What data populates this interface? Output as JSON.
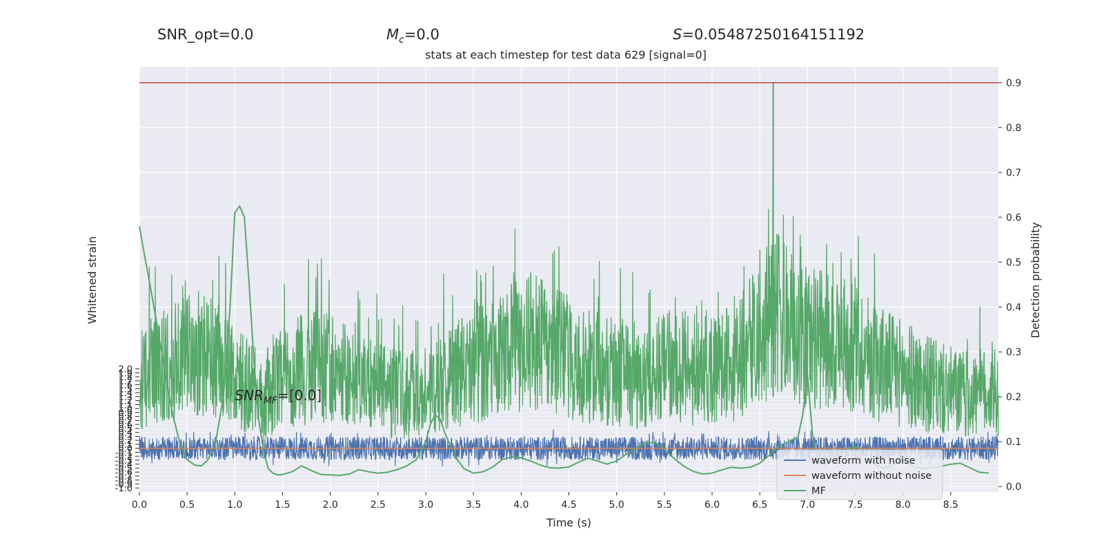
{
  "header": {
    "snr_opt": "SNR_opt=0.0",
    "mc_symbol": "M",
    "mc_sub": "c",
    "mc_value": "=0.0",
    "s_symbol": "S",
    "s_value": "=0.05487250164151192"
  },
  "chart_data": {
    "type": "line",
    "title": "stats at each timestep for test data 629 [signal=0]",
    "xlabel": "Time (s)",
    "ylabel_left": "Whitened strain",
    "ylabel_right": "Detection probability",
    "xlim": [
      0.0,
      9.0
    ],
    "ylim_left": [
      -1.1,
      9.6
    ],
    "ylim_right": [
      -0.012,
      0.935
    ],
    "x_ticks": [
      "0.0",
      "0.5",
      "1.0",
      "1.5",
      "2.0",
      "2.5",
      "3.0",
      "3.5",
      "4.0",
      "4.5",
      "5.0",
      "5.5",
      "6.0",
      "6.5",
      "7.0",
      "7.5",
      "8.0",
      "8.5"
    ],
    "left_ticks": [
      "2.0",
      "1.9",
      "1.8",
      "1.7",
      "1.6",
      "1.5",
      "1.4",
      "1.3",
      "1.2",
      "1.1",
      "1.0",
      "0.9",
      "0.8",
      "0.7",
      "0.6",
      "0.5",
      "0.4",
      "0.3",
      "0.2",
      "0.1",
      "0.0",
      "-0.1",
      "-0.2",
      "-0.3",
      "-0.4",
      "-0.5",
      "-0.6",
      "-0.7",
      "-0.8",
      "-0.9",
      "-1.0"
    ],
    "right_ticks": [
      "0.0",
      "0.1",
      "0.2",
      "0.3",
      "0.4",
      "0.5",
      "0.6",
      "0.7",
      "0.8",
      "0.9"
    ],
    "threshold": 0.9,
    "annotation": {
      "symbol": "SNR",
      "sub": "MF",
      "text": "=[0.0]",
      "x": 1.0,
      "y_prob": 0.2
    },
    "grid": true,
    "legend_position": "lower-right",
    "series": [
      {
        "name": "waveform with noise",
        "axis": "left",
        "kind": "noise",
        "amplitude": 0.35
      },
      {
        "name": "waveform without noise",
        "axis": "left",
        "values_constant": 0.0
      },
      {
        "name": "MF",
        "axis": "right",
        "x": [
          0.0,
          0.05,
          0.12,
          0.2,
          0.28,
          0.35,
          0.42,
          0.5,
          0.58,
          0.65,
          0.72,
          0.8,
          0.88,
          0.95,
          1.0,
          1.05,
          1.1,
          1.15,
          1.2,
          1.25,
          1.3,
          1.35,
          1.4,
          1.45,
          1.5,
          1.6,
          1.7,
          1.8,
          1.9,
          2.0,
          2.1,
          2.2,
          2.3,
          2.4,
          2.5,
          2.6,
          2.7,
          2.8,
          2.9,
          3.0,
          3.05,
          3.1,
          3.15,
          3.2,
          3.3,
          3.4,
          3.5,
          3.6,
          3.7,
          3.8,
          3.9,
          4.0,
          4.1,
          4.2,
          4.3,
          4.4,
          4.5,
          4.6,
          4.7,
          4.8,
          4.9,
          5.0,
          5.1,
          5.2,
          5.3,
          5.4,
          5.5,
          5.6,
          5.7,
          5.8,
          5.9,
          6.0,
          6.1,
          6.2,
          6.3,
          6.4,
          6.5,
          6.6,
          6.7,
          6.8,
          6.9,
          6.95,
          7.0,
          7.05,
          7.1,
          7.2,
          7.3,
          7.4,
          7.5,
          7.6,
          7.7,
          7.8,
          7.9,
          8.0,
          8.1,
          8.2,
          8.3,
          8.4,
          8.5,
          8.6,
          8.7,
          8.8,
          8.9
        ],
        "values": [
          0.58,
          0.52,
          0.44,
          0.34,
          0.24,
          0.16,
          0.1,
          0.06,
          0.048,
          0.046,
          0.06,
          0.1,
          0.2,
          0.4,
          0.61,
          0.625,
          0.6,
          0.45,
          0.28,
          0.15,
          0.08,
          0.04,
          0.03,
          0.026,
          0.027,
          0.033,
          0.046,
          0.036,
          0.027,
          0.026,
          0.025,
          0.028,
          0.038,
          0.033,
          0.03,
          0.032,
          0.038,
          0.046,
          0.06,
          0.1,
          0.14,
          0.16,
          0.15,
          0.12,
          0.07,
          0.04,
          0.03,
          0.033,
          0.043,
          0.06,
          0.066,
          0.064,
          0.057,
          0.048,
          0.042,
          0.041,
          0.044,
          0.054,
          0.063,
          0.057,
          0.05,
          0.057,
          0.072,
          0.086,
          0.098,
          0.098,
          0.084,
          0.063,
          0.046,
          0.034,
          0.028,
          0.03,
          0.037,
          0.043,
          0.041,
          0.043,
          0.052,
          0.07,
          0.09,
          0.1,
          0.11,
          0.16,
          0.25,
          0.12,
          0.06,
          0.05,
          0.06,
          0.08,
          0.09,
          0.07,
          0.05,
          0.04,
          0.05,
          0.06,
          0.045,
          0.04,
          0.042,
          0.045,
          0.05,
          0.052,
          0.042,
          0.032,
          0.03
        ]
      },
      {
        "name": "Detection probability (noisy)",
        "axis": "right",
        "kind": "noise-band",
        "envelope_x": [
          0.0,
          0.3,
          0.6,
          0.8,
          1.0,
          1.3,
          1.6,
          1.9,
          2.2,
          2.5,
          2.8,
          3.0,
          3.2,
          3.5,
          3.8,
          4.1,
          4.4,
          4.7,
          5.0,
          5.3,
          5.6,
          5.9,
          6.2,
          6.5,
          6.6,
          6.65,
          6.7,
          6.9,
          7.2,
          7.5,
          7.8,
          8.1,
          8.4,
          8.7,
          9.0
        ],
        "envelope_y": [
          0.36,
          0.4,
          0.44,
          0.42,
          0.36,
          0.3,
          0.38,
          0.4,
          0.36,
          0.32,
          0.3,
          0.32,
          0.36,
          0.4,
          0.44,
          0.48,
          0.44,
          0.4,
          0.38,
          0.36,
          0.4,
          0.38,
          0.4,
          0.5,
          0.56,
          0.62,
          0.56,
          0.5,
          0.48,
          0.46,
          0.4,
          0.36,
          0.32,
          0.3,
          0.32
        ],
        "peak_x": 6.64,
        "peak_value": 0.9
      },
      {
        "name": "Threshold",
        "axis": "right",
        "values_constant": 0.9
      }
    ],
    "legend": [
      "waveform with noise",
      "waveform without noise",
      "MF"
    ],
    "colors": {
      "noise": "#4c72b0",
      "clean": "#dd8452",
      "mf": "#55a868",
      "threshold": "#c44e52",
      "background": "#eaeaf2",
      "grid": "#ffffff"
    }
  }
}
